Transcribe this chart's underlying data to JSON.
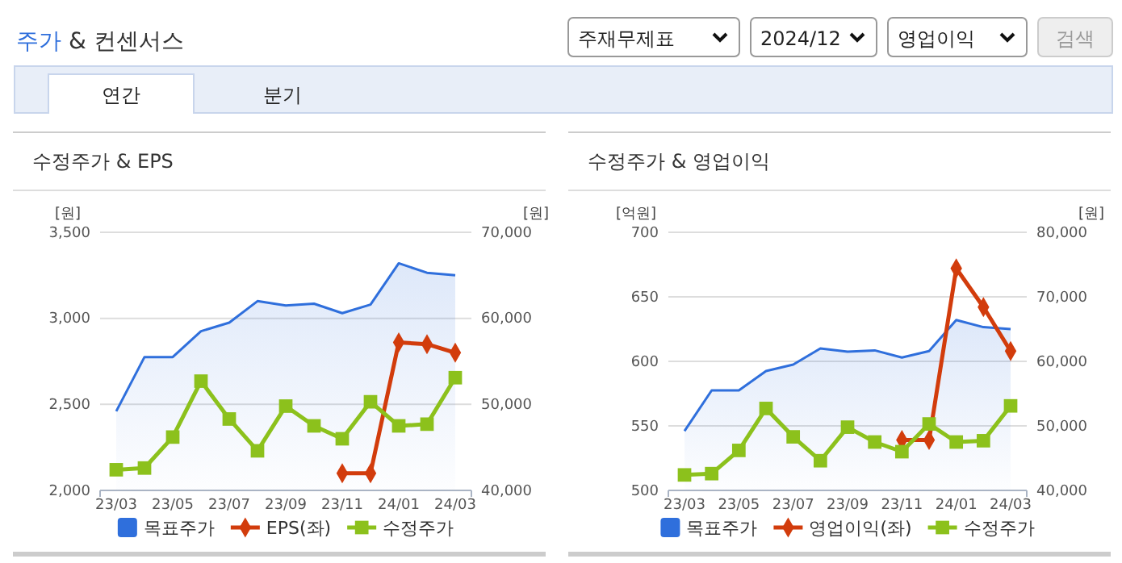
{
  "chart_data": [
    {
      "type": "line",
      "title": "수정주가 & EPS",
      "ylabel": "[원]",
      "y2label": "[원]",
      "annotations": [
        "주가 & 컨센서스",
        "주재무제표",
        "2024/12",
        "영업이익",
        "검색",
        "연간",
        "분기"
      ],
      "categories": [
        "23/03",
        null,
        "23/05",
        null,
        "23/07",
        null,
        "23/09",
        null,
        "23/11",
        null,
        "24/01",
        null,
        "24/03"
      ],
      "ylim": [
        2000,
        3500
      ],
      "yticks": [
        {
          "value": 2000,
          "label": "2,000"
        },
        {
          "value": 2500,
          "label": "2,500"
        },
        {
          "value": 3000,
          "label": "3,000"
        },
        {
          "value": 3500,
          "label": "3,500"
        }
      ],
      "y2lim": [
        40000,
        70000
      ],
      "y2ticks": [
        {
          "value": 40000,
          "label": "40,000"
        },
        {
          "value": 50000,
          "label": "50,000"
        },
        {
          "value": 60000,
          "label": "60,000"
        },
        {
          "value": 70000,
          "label": "70,000"
        }
      ],
      "grid": "y",
      "legend": "bottom",
      "series": [
        {
          "name": "목표주가",
          "type": "area",
          "color": "#2f6fdc",
          "axis": "y2",
          "values": [
            49200,
            55500,
            55500,
            58500,
            59500,
            62000,
            61500,
            61700,
            60600,
            61600,
            66400,
            65300,
            65000
          ]
        },
        {
          "name": "EPS(좌)",
          "color": "#d23c0c",
          "marker": "diamond",
          "values": [
            null,
            null,
            null,
            null,
            null,
            null,
            null,
            null,
            2100,
            2100,
            2860,
            2850,
            2800
          ]
        },
        {
          "name": "수정주가",
          "color": "#8cc11c",
          "marker": "square",
          "axis": "y2",
          "values": [
            42400,
            42600,
            46200,
            52700,
            48300,
            44600,
            49800,
            47500,
            46000,
            50300,
            47500,
            47700,
            53100
          ]
        }
      ]
    },
    {
      "type": "line",
      "title": "수정주가 & 영업이익",
      "ylabel": "[억원]",
      "y2label": "[원]",
      "categories": [
        "23/03",
        null,
        "23/05",
        null,
        "23/07",
        null,
        "23/09",
        null,
        "23/11",
        null,
        "24/01",
        null,
        "24/03"
      ],
      "ylim": [
        500,
        700
      ],
      "yticks": [
        500,
        550,
        600,
        650,
        700
      ],
      "y2lim": [
        40000,
        80000
      ],
      "y2ticks": [
        {
          "value": 40000,
          "label": "40,000"
        },
        {
          "value": 50000,
          "label": "50,000"
        },
        {
          "value": 60000,
          "label": "60,000"
        },
        {
          "value": 70000,
          "label": "70,000"
        },
        {
          "value": 80000,
          "label": "80,000"
        }
      ],
      "grid": "y",
      "legend": "bottom",
      "series": [
        {
          "name": "목표주가",
          "type": "area",
          "color": "#2f6fdc",
          "axis": "y2",
          "values": [
            49200,
            55500,
            55500,
            58500,
            59500,
            62000,
            61500,
            61700,
            60600,
            61600,
            66400,
            65300,
            65000
          ]
        },
        {
          "name": "영업이익(좌)",
          "color": "#d23c0c",
          "marker": "diamond",
          "values": [
            null,
            null,
            null,
            null,
            null,
            null,
            null,
            null,
            539,
            539,
            672,
            642,
            608
          ]
        },
        {
          "name": "수정주가",
          "color": "#8cc11c",
          "marker": "square",
          "axis": "y2",
          "values": [
            42400,
            42600,
            46200,
            52700,
            48300,
            44600,
            49800,
            47500,
            46000,
            50300,
            47500,
            47700,
            53100
          ]
        }
      ]
    }
  ]
}
